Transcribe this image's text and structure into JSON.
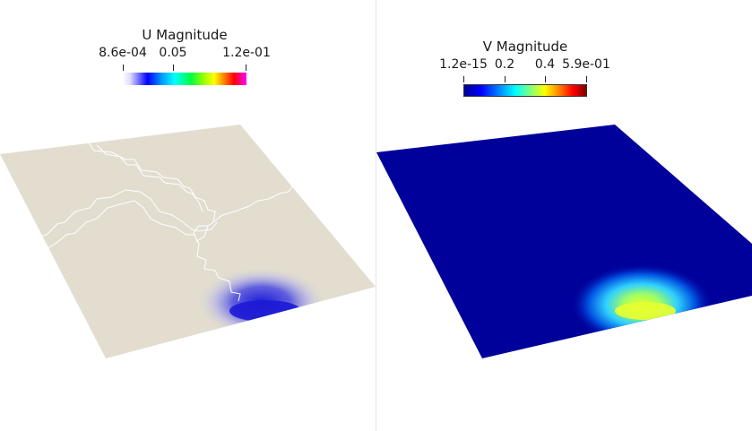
{
  "left_view": {
    "legend": {
      "title": "U Magnitude",
      "ticks": [
        "8.6e-04",
        "0.05",
        "1.2e-01"
      ]
    },
    "colors": {
      "surface": "#e2ddcf",
      "fracture_lines": "#ffffff",
      "spot": "#2020d0"
    }
  },
  "right_view": {
    "legend": {
      "title": "V Magnitude",
      "ticks": [
        "1.2e-15",
        "0.2",
        "0.4",
        "5.9e-01"
      ]
    },
    "colors": {
      "surface": "#00009a",
      "spot_core": "#e0ff30"
    }
  }
}
